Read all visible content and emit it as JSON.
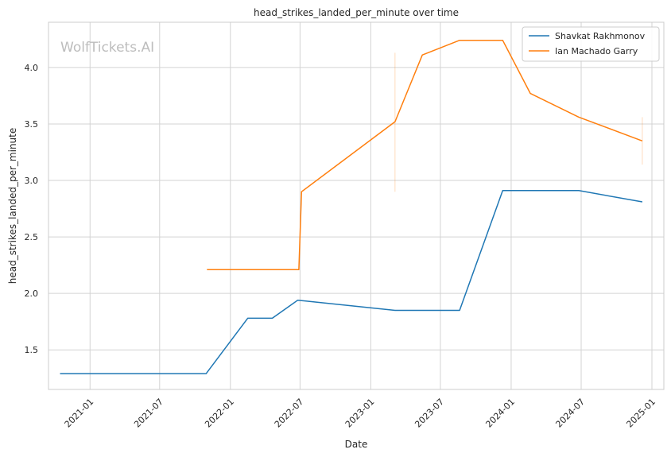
{
  "chart_data": {
    "type": "line",
    "title": "head_strikes_landed_per_minute over time",
    "xlabel": "Date",
    "ylabel": "head_strikes_landed_per_minute",
    "watermark": "WolfTickets.AI",
    "x_range": [
      "2020-09-15",
      "2025-02-01"
    ],
    "ylim": [
      1.15,
      4.4
    ],
    "x_ticks": [
      "2021-01",
      "2021-07",
      "2022-01",
      "2022-07",
      "2023-01",
      "2023-07",
      "2024-01",
      "2024-07",
      "2025-01"
    ],
    "y_ticks": [
      "1.5",
      "2.0",
      "2.5",
      "3.0",
      "3.5",
      "4.0"
    ],
    "grid": true,
    "legend_position": "top-right",
    "series": [
      {
        "name": "Shavkat Rakhmonov",
        "color": "#1f77b4",
        "points": [
          {
            "x": "2020-10-15",
            "y": 1.29
          },
          {
            "x": "2021-10-30",
            "y": 1.29
          },
          {
            "x": "2022-02-15",
            "y": 1.78
          },
          {
            "x": "2022-04-20",
            "y": 1.78
          },
          {
            "x": "2022-06-25",
            "y": 1.94
          },
          {
            "x": "2023-03-05",
            "y": 1.85
          },
          {
            "x": "2023-08-20",
            "y": 1.85
          },
          {
            "x": "2023-12-10",
            "y": 2.91
          },
          {
            "x": "2024-06-25",
            "y": 2.91
          },
          {
            "x": "2024-12-07",
            "y": 2.81
          }
        ]
      },
      {
        "name": "Ian Machado Garry",
        "color": "#ff7f0e",
        "points": [
          {
            "x": "2021-11-01",
            "y": 2.21
          },
          {
            "x": "2022-06-28",
            "y": 2.21
          },
          {
            "x": "2022-07-05",
            "y": 2.9
          },
          {
            "x": "2023-03-05",
            "y": 3.52
          },
          {
            "x": "2023-05-15",
            "y": 4.11
          },
          {
            "x": "2023-08-20",
            "y": 4.24
          },
          {
            "x": "2023-12-10",
            "y": 4.24
          },
          {
            "x": "2024-02-20",
            "y": 3.77
          },
          {
            "x": "2024-06-25",
            "y": 3.56
          },
          {
            "x": "2024-12-07",
            "y": 3.35
          }
        ],
        "error_bands": [
          {
            "x": "2023-03-05",
            "low": 2.9,
            "high": 4.13
          },
          {
            "x": "2024-12-07",
            "low": 3.14,
            "high": 3.56
          }
        ]
      }
    ]
  }
}
